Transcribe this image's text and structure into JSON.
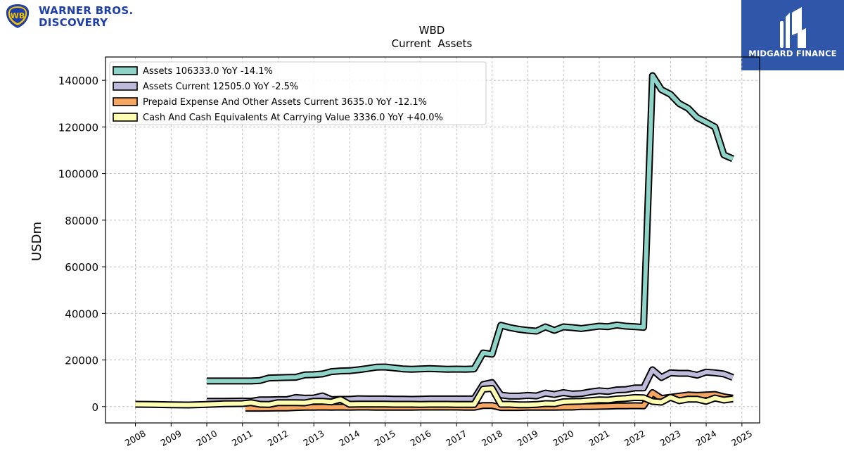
{
  "branding": {
    "left_logo_line1": "WARNER BROS.",
    "left_logo_line2": "DISCOVERY",
    "left_logo_icon": "wb-shield-icon",
    "right_logo_text": "MIDGARD FINANCE",
    "right_logo_icon": "midgard-mark-icon",
    "right_logo_bg": "#2f56a8"
  },
  "chart_data": {
    "type": "line",
    "title": "WBD",
    "subtitle": "Current  Assets",
    "ylabel": "USDm",
    "xlabel": "",
    "ylim": [
      -7000,
      150000
    ],
    "xlim": [
      "2007-03-01",
      "2025-07-01"
    ],
    "yticks": [
      0,
      20000,
      40000,
      60000,
      80000,
      100000,
      120000,
      140000
    ],
    "ytick_labels": [
      "0",
      "20000",
      "40000",
      "60000",
      "80000",
      "100000",
      "120000",
      "140000"
    ],
    "xticks": [
      "2008",
      "2009",
      "2010",
      "2011",
      "2012",
      "2013",
      "2014",
      "2015",
      "2016",
      "2017",
      "2018",
      "2019",
      "2020",
      "2021",
      "2022",
      "2023",
      "2024",
      "2025"
    ],
    "grid": true,
    "legend_position": "top-left",
    "series": [
      {
        "name": "Assets  106333.0 YoY -14.1%",
        "color": "#8dd3c7",
        "x": [
          "2009-12-31",
          "2010-06-30",
          "2010-12-31",
          "2011-03-31",
          "2011-06-30",
          "2011-09-30",
          "2011-12-31",
          "2012-03-31",
          "2012-06-30",
          "2012-09-30",
          "2012-12-31",
          "2013-03-31",
          "2013-06-30",
          "2013-09-30",
          "2013-12-31",
          "2014-03-31",
          "2014-06-30",
          "2014-09-30",
          "2014-12-31",
          "2015-03-31",
          "2015-06-30",
          "2015-09-30",
          "2015-12-31",
          "2016-03-31",
          "2016-06-30",
          "2016-09-30",
          "2016-12-31",
          "2017-03-31",
          "2017-06-30",
          "2017-09-30",
          "2017-12-31",
          "2018-03-31",
          "2018-06-30",
          "2018-09-30",
          "2018-12-31",
          "2019-03-31",
          "2019-06-30",
          "2019-09-30",
          "2019-12-31",
          "2020-03-31",
          "2020-06-30",
          "2020-09-30",
          "2020-12-31",
          "2021-03-31",
          "2021-06-30",
          "2021-09-30",
          "2021-12-31",
          "2022-03-31",
          "2022-06-30",
          "2022-09-30",
          "2022-12-31",
          "2023-03-31",
          "2023-06-30",
          "2023-09-30",
          "2023-12-31",
          "2024-03-31",
          "2024-06-30",
          "2024-09-30"
        ],
        "values": [
          11000,
          11000,
          11000,
          11000,
          11200,
          12300,
          12400,
          12500,
          12600,
          13600,
          13700,
          14000,
          15000,
          15300,
          15400,
          15800,
          16300,
          16900,
          17000,
          16600,
          16200,
          16000,
          16200,
          16300,
          16200,
          16000,
          16100,
          16000,
          16200,
          23000,
          22500,
          34900,
          33900,
          33200,
          32700,
          32400,
          34200,
          32700,
          34200,
          33900,
          33500,
          34000,
          34500,
          34300,
          35000,
          34500,
          34300,
          34000,
          142000,
          136000,
          134000,
          130000,
          128000,
          124000,
          122000,
          120000,
          108000,
          106333
        ]
      },
      {
        "name": "Assets Current  12505.0 YoY -2.5%",
        "color": "#bebada",
        "x": [
          "2009-12-31",
          "2010-06-30",
          "2010-12-31",
          "2011-03-31",
          "2011-06-30",
          "2011-09-30",
          "2011-12-31",
          "2012-03-31",
          "2012-06-30",
          "2012-09-30",
          "2012-12-31",
          "2013-03-31",
          "2013-06-30",
          "2013-09-30",
          "2013-12-31",
          "2014-03-31",
          "2014-06-30",
          "2014-09-30",
          "2014-12-31",
          "2015-03-31",
          "2015-06-30",
          "2015-09-30",
          "2015-12-31",
          "2016-03-31",
          "2016-06-30",
          "2016-09-30",
          "2016-12-31",
          "2017-03-31",
          "2017-06-30",
          "2017-09-30",
          "2017-12-31",
          "2018-03-31",
          "2018-06-30",
          "2018-09-30",
          "2018-12-31",
          "2019-03-31",
          "2019-06-30",
          "2019-09-30",
          "2019-12-31",
          "2020-03-31",
          "2020-06-30",
          "2020-09-30",
          "2020-12-31",
          "2021-03-31",
          "2021-06-30",
          "2021-09-30",
          "2021-12-31",
          "2022-03-31",
          "2022-06-30",
          "2022-09-30",
          "2022-12-31",
          "2023-03-31",
          "2023-06-30",
          "2023-09-30",
          "2023-12-31",
          "2024-03-31",
          "2024-06-30",
          "2024-09-30"
        ],
        "values": [
          2300,
          2300,
          2400,
          2300,
          2900,
          2900,
          3000,
          3000,
          3900,
          3600,
          3700,
          4600,
          3000,
          3100,
          3100,
          3400,
          3300,
          3300,
          3300,
          3200,
          3200,
          3100,
          3200,
          3300,
          3300,
          3300,
          3300,
          3300,
          3300,
          9500,
          10300,
          5000,
          4500,
          4500,
          4800,
          4600,
          5800,
          5200,
          6000,
          5400,
          5600,
          6300,
          6800,
          6500,
          7200,
          7300,
          8000,
          8000,
          15800,
          12500,
          14500,
          14300,
          14300,
          13500,
          14800,
          14500,
          14000,
          12505
        ]
      },
      {
        "name": "Prepaid Expense And Other Assets Current  3635.0 YoY -12.1%",
        "color": "#f5a662",
        "x": [
          "2011-01-31",
          "2011-06-30",
          "2011-12-31",
          "2012-03-31",
          "2012-06-30",
          "2012-09-30",
          "2012-12-31",
          "2013-03-31",
          "2013-06-30",
          "2013-09-30",
          "2013-12-31",
          "2014-03-31",
          "2014-06-30",
          "2014-09-30",
          "2014-12-31",
          "2015-03-31",
          "2015-06-30",
          "2015-09-30",
          "2015-12-31",
          "2016-03-31",
          "2016-06-30",
          "2016-09-30",
          "2016-12-31",
          "2017-03-31",
          "2017-06-30",
          "2017-09-30",
          "2017-12-31",
          "2018-03-31",
          "2018-06-30",
          "2018-09-30",
          "2018-12-31",
          "2019-03-31",
          "2019-06-30",
          "2019-09-30",
          "2019-12-31",
          "2020-03-31",
          "2020-06-30",
          "2020-09-30",
          "2020-12-31",
          "2021-03-31",
          "2021-06-30",
          "2021-09-30",
          "2021-12-31",
          "2022-03-31",
          "2022-06-30",
          "2022-09-30",
          "2022-12-31",
          "2023-03-31",
          "2023-06-30",
          "2023-09-30",
          "2023-12-31",
          "2024-03-31",
          "2024-06-30",
          "2024-09-30"
        ],
        "values": [
          -700,
          -700,
          -600,
          -600,
          -400,
          -300,
          -300,
          -200,
          -300,
          -200,
          -300,
          -200,
          -200,
          -300,
          -300,
          -300,
          -300,
          -300,
          -200,
          -200,
          -200,
          -200,
          -200,
          -300,
          -300,
          500,
          500,
          -400,
          -400,
          -400,
          -300,
          -300,
          -300,
          -300,
          -200,
          -200,
          0,
          0,
          100,
          200,
          300,
          300,
          400,
          300,
          6000,
          3500,
          4000,
          4500,
          5000,
          4800,
          5000,
          5200,
          4200,
          3635
        ]
      },
      {
        "name": "Cash And Cash Equivalents At Carrying Value  3336.0 YoY +40.0%",
        "color": "#ffffb3",
        "x": [
          "2007-12-31",
          "2008-06-30",
          "2008-12-31",
          "2009-06-30",
          "2009-12-31",
          "2010-06-30",
          "2010-12-31",
          "2011-03-31",
          "2011-06-30",
          "2011-09-30",
          "2011-12-31",
          "2012-03-31",
          "2012-06-30",
          "2012-09-30",
          "2012-12-31",
          "2013-03-31",
          "2013-06-30",
          "2013-09-30",
          "2013-12-31",
          "2014-03-31",
          "2014-06-30",
          "2014-09-30",
          "2014-12-31",
          "2015-03-31",
          "2015-06-30",
          "2015-09-30",
          "2015-12-31",
          "2016-03-31",
          "2016-06-30",
          "2016-09-30",
          "2016-12-31",
          "2017-03-31",
          "2017-06-30",
          "2017-09-30",
          "2017-12-31",
          "2018-03-31",
          "2018-06-30",
          "2018-09-30",
          "2018-12-31",
          "2019-03-31",
          "2019-06-30",
          "2019-09-30",
          "2019-12-31",
          "2020-03-31",
          "2020-06-30",
          "2020-09-30",
          "2020-12-31",
          "2021-03-31",
          "2021-06-30",
          "2021-09-30",
          "2021-12-31",
          "2022-03-31",
          "2022-06-30",
          "2022-09-30",
          "2022-12-31",
          "2023-03-31",
          "2023-06-30",
          "2023-09-30",
          "2023-12-31",
          "2024-03-31",
          "2024-06-30",
          "2024-09-30"
        ],
        "values": [
          1000,
          900,
          800,
          700,
          900,
          1200,
          1300,
          1700,
          1000,
          900,
          1700,
          1700,
          1700,
          1600,
          2300,
          2300,
          2000,
          3100,
          1000,
          1100,
          1100,
          1100,
          1100,
          1000,
          1000,
          1000,
          900,
          1000,
          1000,
          1000,
          900,
          900,
          900,
          7500,
          7800,
          1000,
          1000,
          800,
          800,
          900,
          1300,
          1200,
          2100,
          2200,
          2300,
          2600,
          2900,
          2800,
          3300,
          3500,
          3900,
          3800,
          2200,
          1900,
          4000,
          2500,
          3200,
          3200,
          2300,
          3700,
          2800,
          3336
        ]
      }
    ]
  }
}
